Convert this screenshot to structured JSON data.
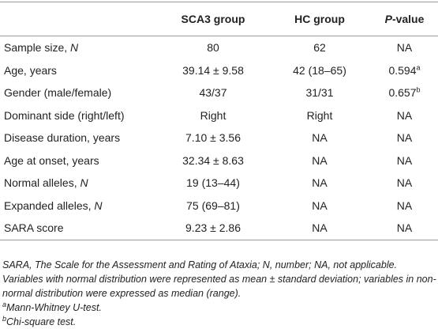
{
  "table": {
    "header": {
      "sca3": "SCA3 group",
      "hc": "HC group",
      "p_italic": "P",
      "p_rest": "-value"
    },
    "rows": [
      {
        "label": "Sample size, ",
        "label_italic": "N",
        "sca3": "80",
        "hc": "62",
        "p": "NA"
      },
      {
        "label": "Age, years",
        "sca3": "39.14 ± 9.58",
        "hc": "42 (18–65)",
        "p": "0.594",
        "p_sup": "a"
      },
      {
        "label": "Gender (male/female)",
        "sca3": "43/37",
        "hc": "31/31",
        "p": "0.657",
        "p_sup": "b"
      },
      {
        "label": "Dominant side (right/left)",
        "sca3": "Right",
        "hc": "Right",
        "p": "NA"
      },
      {
        "label": "Disease duration, years",
        "sca3": "7.10 ± 3.56",
        "hc": "NA",
        "p": "NA"
      },
      {
        "label": "Age at onset, years",
        "sca3": "32.34 ± 8.63",
        "hc": "NA",
        "p": "NA"
      },
      {
        "label": "Normal alleles, ",
        "label_italic": "N",
        "sca3": "19 (13–44)",
        "hc": "NA",
        "p": "NA"
      },
      {
        "label": "Expanded alleles, ",
        "label_italic": "N",
        "sca3": "75 (69–81)",
        "hc": "NA",
        "p": "NA"
      },
      {
        "label": "SARA score",
        "sca3": "9.23 ± 2.86",
        "hc": "NA",
        "p": "NA"
      }
    ]
  },
  "notes": {
    "text": "SARA, The Scale for the Assessment and Rating of Ataxia; N, number; NA, not applicable. Variables with normal distribution were represented as mean ± standard deviation; variables in non-normal distribution were expressed as median (range).",
    "footnotes": [
      {
        "mark": "a",
        "text": "Mann-Whitney U-test."
      },
      {
        "mark": "b",
        "text": "Chi-square test."
      }
    ]
  }
}
